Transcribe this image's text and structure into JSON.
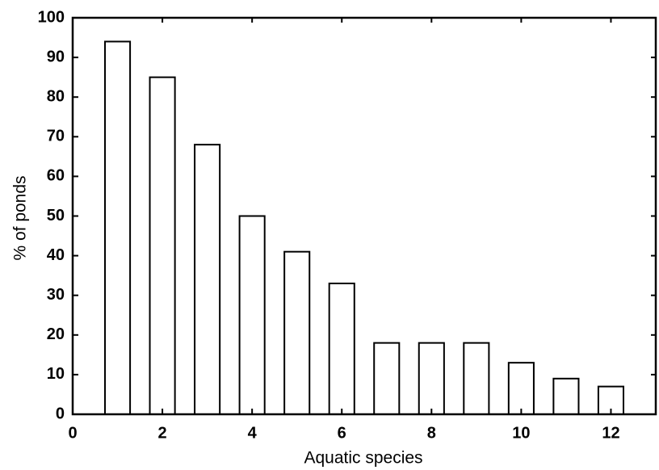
{
  "chart_data": {
    "type": "bar",
    "x_label": "Aquatic species",
    "y_label": "% of ponds",
    "x": [
      1,
      2,
      3,
      4,
      5,
      6,
      7,
      8,
      9,
      10,
      11,
      12
    ],
    "values": [
      94,
      85,
      68,
      50,
      41,
      33,
      18,
      18,
      18,
      13,
      9,
      7
    ],
    "color": "#ffffff",
    "xlim": [
      0,
      13
    ],
    "xticks": [
      0,
      2,
      4,
      6,
      8,
      10,
      12
    ],
    "ylim": [
      0,
      100
    ],
    "yticks": [
      0,
      10,
      20,
      30,
      40,
      50,
      60,
      70,
      80,
      90,
      100
    ],
    "grid": false
  }
}
